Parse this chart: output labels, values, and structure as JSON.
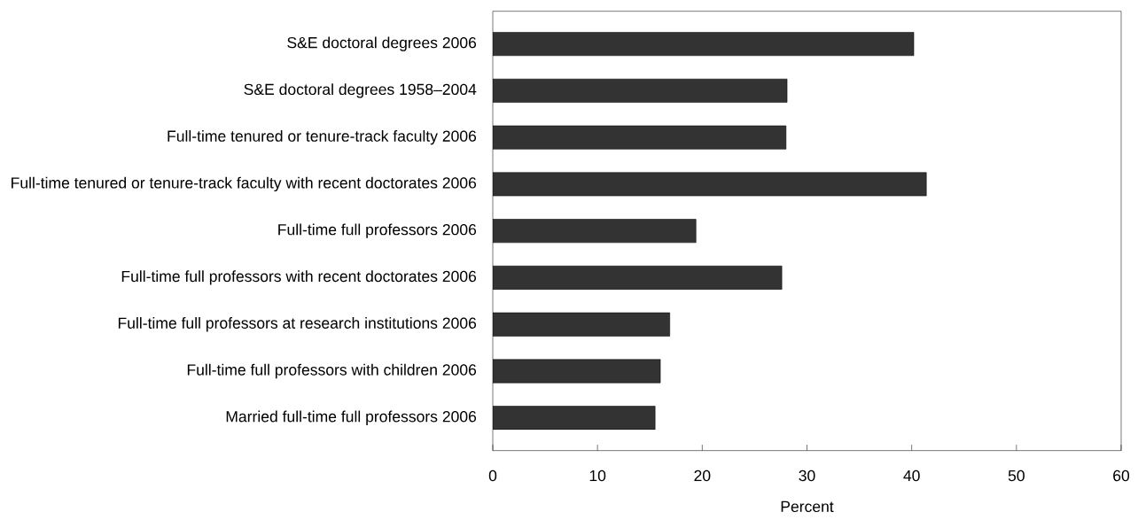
{
  "chart_data": {
    "type": "bar",
    "orientation": "horizontal",
    "xlabel": "Percent",
    "categories": [
      "S&E doctoral degrees 2006",
      "S&E doctoral degrees 1958–2004",
      "Full-time tenured or tenure-track faculty 2006",
      "Full-time tenured or tenure-track faculty with recent doctorates 2006",
      "Full-time full professors 2006",
      "Full-time full professors with recent doctorates 2006",
      "Full-time full professors at research institutions 2006",
      "Full-time full professors with children 2006",
      "Married full-time full professors 2006"
    ],
    "values": [
      40.2,
      28.1,
      28.0,
      41.4,
      19.4,
      27.6,
      16.9,
      16.0,
      15.5
    ],
    "color": "#333333",
    "xlim": [
      0,
      60
    ],
    "xticks": [
      0,
      10,
      20,
      30,
      40,
      50,
      60
    ]
  }
}
